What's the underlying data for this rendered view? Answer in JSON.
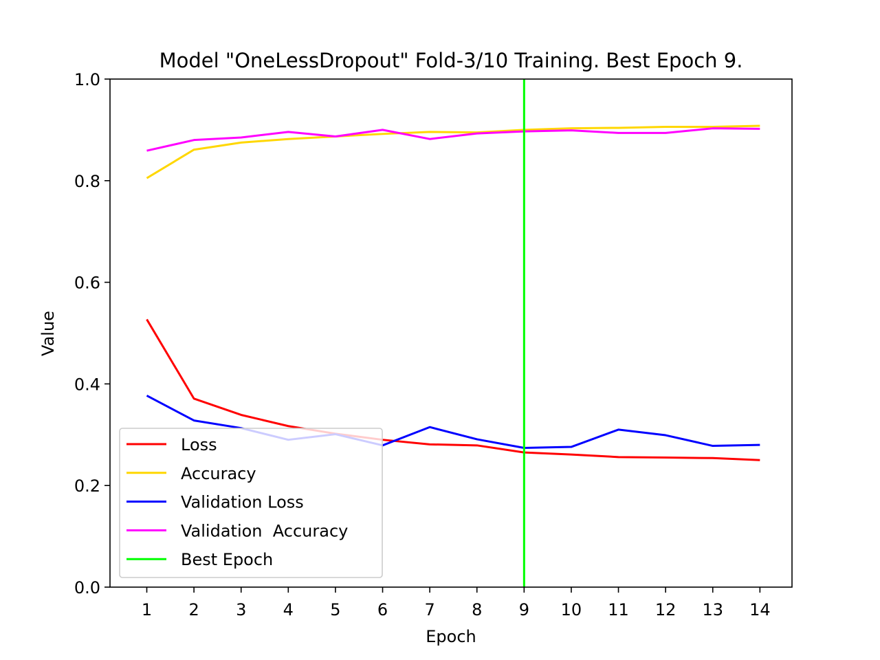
{
  "chart_data": {
    "type": "line",
    "title": "Model \"OneLessDropout\" Fold-3/10 Training. Best Epoch 9.",
    "xlabel": "Epoch",
    "ylabel": "Value",
    "x": [
      1,
      2,
      3,
      4,
      5,
      6,
      7,
      8,
      9,
      10,
      11,
      12,
      13,
      14
    ],
    "xticks": [
      "1",
      "2",
      "3",
      "4",
      "5",
      "6",
      "7",
      "8",
      "9",
      "10",
      "11",
      "12",
      "13",
      "14"
    ],
    "yticks": [
      "0.0",
      "0.2",
      "0.4",
      "0.6",
      "0.8",
      "1.0"
    ],
    "xlim": [
      0.22,
      14.68
    ],
    "ylim": [
      0.0,
      1.0
    ],
    "grid": false,
    "legend_position": "lower-left",
    "series": [
      {
        "name": "Loss",
        "color": "#ff0000",
        "values": [
          0.527,
          0.371,
          0.339,
          0.317,
          0.302,
          0.29,
          0.281,
          0.279,
          0.265,
          0.261,
          0.256,
          0.255,
          0.254,
          0.25
        ]
      },
      {
        "name": "Accuracy",
        "color": "#ffd700",
        "values": [
          0.805,
          0.861,
          0.875,
          0.882,
          0.887,
          0.892,
          0.896,
          0.895,
          0.9,
          0.903,
          0.904,
          0.906,
          0.906,
          0.908
        ]
      },
      {
        "name": "Validation Loss",
        "color": "#0000ff",
        "values": [
          0.377,
          0.328,
          0.313,
          0.29,
          0.301,
          0.279,
          0.315,
          0.291,
          0.274,
          0.276,
          0.31,
          0.299,
          0.278,
          0.28
        ]
      },
      {
        "name": "Validation  Accuracy",
        "color": "#ff00ff",
        "values": [
          0.859,
          0.88,
          0.885,
          0.896,
          0.887,
          0.9,
          0.882,
          0.893,
          0.897,
          0.899,
          0.894,
          0.894,
          0.903,
          0.902
        ]
      }
    ],
    "best_epoch": {
      "name": "Best Epoch",
      "x": 9,
      "color": "#00ff00"
    }
  }
}
